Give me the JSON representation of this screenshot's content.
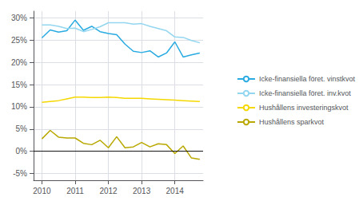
{
  "chart_data": {
    "type": "line",
    "x": [
      2010.0,
      2010.25,
      2010.5,
      2010.75,
      2011.0,
      2011.25,
      2011.5,
      2011.75,
      2012.0,
      2012.25,
      2012.5,
      2012.75,
      2013.0,
      2013.25,
      2013.5,
      2013.75,
      2014.0,
      2014.25,
      2014.5,
      2014.75
    ],
    "series": [
      {
        "name": "Icke-finansiella föret. vinstkvot",
        "color": "#29abe2",
        "values": [
          0.255,
          0.273,
          0.268,
          0.271,
          0.295,
          0.272,
          0.281,
          0.269,
          0.265,
          0.262,
          0.241,
          0.225,
          0.222,
          0.226,
          0.212,
          0.221,
          0.246,
          0.212,
          0.217,
          0.221
        ]
      },
      {
        "name": "Icke-finansiella föret. inv.kvot",
        "color": "#93d6f0",
        "values": [
          0.284,
          0.284,
          0.281,
          0.276,
          0.277,
          0.269,
          0.274,
          0.28,
          0.289,
          0.289,
          0.289,
          0.286,
          0.287,
          0.281,
          0.276,
          0.271,
          0.257,
          0.256,
          0.249,
          0.244
        ]
      },
      {
        "name": "Hushållens investeringskvot",
        "color": "#f5d800",
        "values": [
          0.11,
          0.112,
          0.114,
          0.118,
          0.122,
          0.122,
          0.121,
          0.121,
          0.122,
          0.121,
          0.119,
          0.119,
          0.119,
          0.118,
          0.117,
          0.116,
          0.115,
          0.114,
          0.113,
          0.112
        ]
      },
      {
        "name": "Hushållens sparkvot",
        "color": "#b8a800",
        "values": [
          0.028,
          0.047,
          0.032,
          0.03,
          0.03,
          0.018,
          0.015,
          0.025,
          0.008,
          0.033,
          0.008,
          0.01,
          0.02,
          0.01,
          0.017,
          0.015,
          -0.005,
          0.012,
          -0.015,
          -0.018
        ]
      }
    ],
    "xlim": [
      2009.75,
      2014.85
    ],
    "xticks": [
      2010,
      2011,
      2012,
      2013,
      2014
    ],
    "ylim": [
      -0.065,
      0.315
    ],
    "yticks": [
      {
        "value": -0.05,
        "label": "-5%"
      },
      {
        "value": 0.0,
        "label": "0%"
      },
      {
        "value": 0.05,
        "label": "5%"
      },
      {
        "value": 0.1,
        "label": "10%"
      },
      {
        "value": 0.15,
        "label": "15%"
      },
      {
        "value": 0.2,
        "label": "20%"
      },
      {
        "value": 0.25,
        "label": "25%"
      },
      {
        "value": 0.3,
        "label": "30%"
      }
    ],
    "grid": true,
    "legend": "right"
  }
}
